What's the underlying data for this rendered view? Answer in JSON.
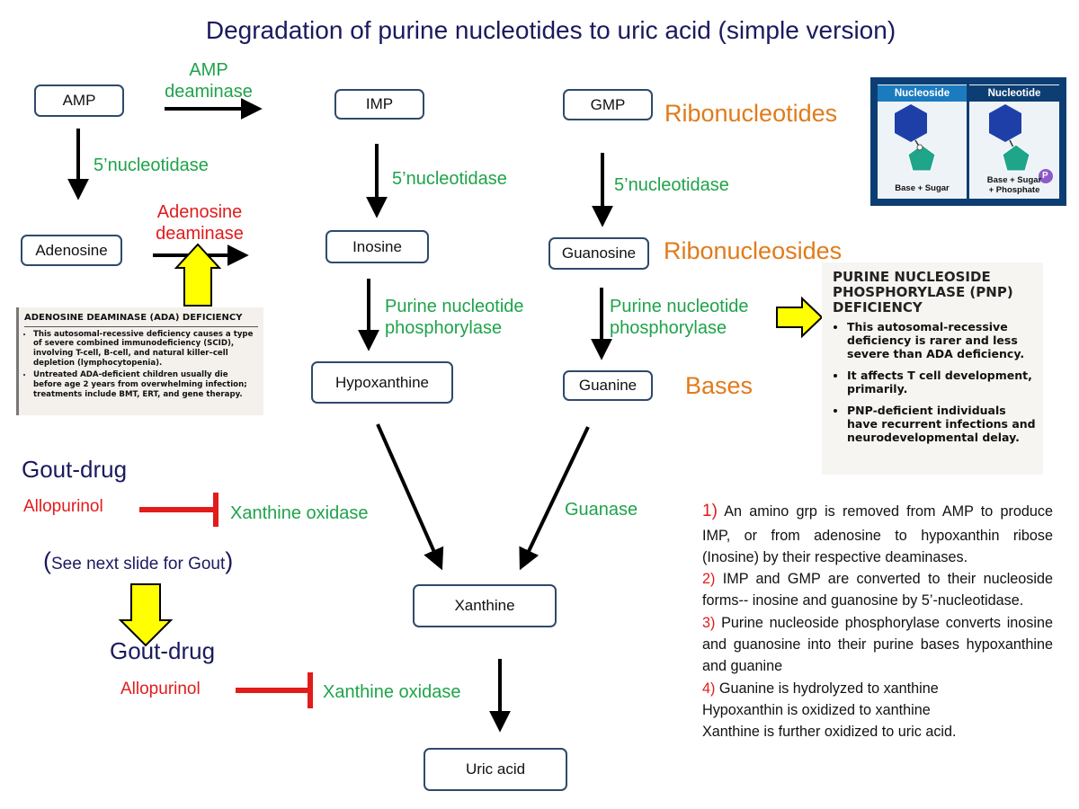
{
  "title": "Degradation of purine nucleotides to uric acid (simple version)",
  "nodes": {
    "amp": "AMP",
    "imp": "IMP",
    "gmp": "GMP",
    "adenosine": "Adenosine",
    "inosine": "Inosine",
    "guanosine": "Guanosine",
    "hypoxanthine": "Hypoxanthine",
    "guanine": "Guanine",
    "xanthine": "Xanthine",
    "uric_acid": "Uric acid"
  },
  "enzymes": {
    "amp_deaminase_1": "AMP",
    "amp_deaminase_2": "deaminase",
    "nucleotidase_amp": "5’nucleotidase",
    "nucleotidase_imp": "5’nucleotidase",
    "nucleotidase_gmp": "5’nucleotidase",
    "adenosine_deaminase_1": "Adenosine",
    "adenosine_deaminase_2": "deaminase",
    "pnp_inosine_1": "Purine nucleotide",
    "pnp_inosine_2": "phosphorylase",
    "pnp_guanosine_1": "Purine nucleotide",
    "pnp_guanosine_2": "phosphorylase",
    "guanase": "Guanase",
    "xanthine_oxidase_1": "Xanthine oxidase",
    "xanthine_oxidase_2": "Xanthine oxidase"
  },
  "categories": {
    "ribonucleotides": "Ribonucleotides",
    "ribonucleosides": "Ribonucleosides",
    "bases": "Bases"
  },
  "gout": {
    "drug_label_1": "Gout-drug",
    "inhibitor_1": "Allopurinol",
    "see_next_open": "(",
    "see_next_text": "See next slide for Gout",
    "see_next_close": ")",
    "drug_label_2": "Gout-drug",
    "inhibitor_2": "Allopurinol"
  },
  "ada_panel": {
    "heading": "ADENOSINE DEAMINASE (ADA) DEFICIENCY",
    "bullets": [
      "This autosomal-recessive deficiency causes a type of severe combined immunodeficiency (SCID), involving T-cell, B-cell, and natural killer–cell depletion (lymphocytopenia).",
      "Untreated ADA-deficient children usually die before age 2 years from overwhelming infection; treatments include BMT, ERT, and gene therapy."
    ]
  },
  "pnp_panel": {
    "heading": "PURINE NUCLEOSIDE PHOSPHORYLASE (PNP) DEFICIENCY",
    "bullets": [
      "This autosomal-recessive deficiency is rarer and less severe than ADA deficiency.",
      "It affects T cell development, primarily.",
      "PNP-deficient individuals have recurrent infections and neurodevelopmental delay."
    ]
  },
  "nucleoside_panel": {
    "nucleoside_header": "Nucleoside",
    "nucleotide_header": "Nucleotide",
    "nucleoside_caption": "Base + Sugar",
    "nucleotide_caption_1": "Base + Sugar",
    "nucleotide_caption_2": "+ Phosphate",
    "phosphate_symbol": "P"
  },
  "notes": [
    {
      "num": "1)",
      "text": " An amino grp is removed from AMP to produce IMP, or from adenosine to hypoxanthin ribose (Inosine) by their respective deaminases."
    },
    {
      "num": "2)",
      "text": " IMP and GMP are converted to their nucleoside forms-- inosine and guanosine by 5’-nucleotidase."
    },
    {
      "num": "3)",
      "text": " Purine nucleoside phosphorylase converts inosine and guanosine into their purine bases hypoxanthine and guanine"
    },
    {
      "num": "4)",
      "text": " Guanine is hydrolyzed to xanthine"
    },
    {
      "num": "",
      "text": "Hypoxanthin is oxidized to xanthine"
    },
    {
      "num": "",
      "text": "Xanthine is further oxidized to uric acid."
    }
  ],
  "colors": {
    "node_border": "#2e4a6b",
    "enzyme_green": "#1fa34a",
    "inhibitor_red": "#e21b1b",
    "category_orange": "#e07b1a",
    "highlight_yellow": "#ffff00"
  }
}
